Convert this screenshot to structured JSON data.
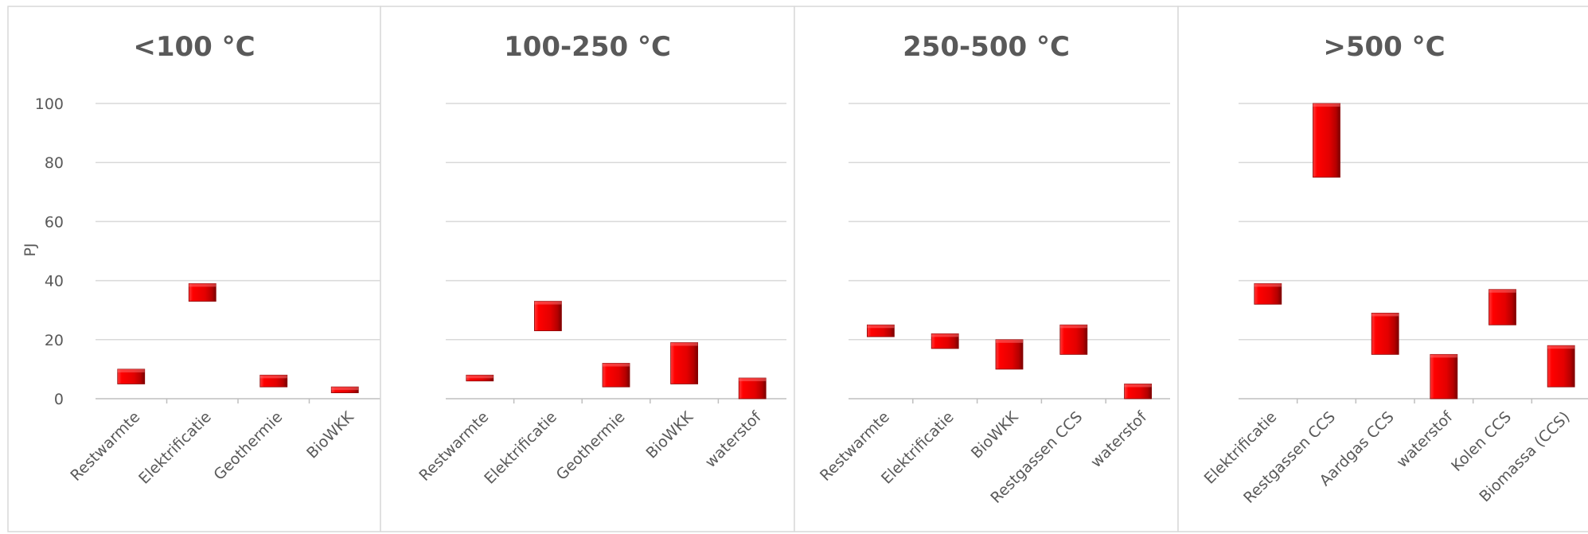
{
  "chart_data": {
    "type": "bar",
    "subtype": "floating-range",
    "ylabel": "PJ",
    "ylim": [
      0,
      100
    ],
    "yticks": [
      0,
      20,
      40,
      60,
      80,
      100
    ],
    "bar_color": "#e8000b",
    "grid": true,
    "legend": "none",
    "panels": [
      {
        "title": "<100 °C",
        "categories": [
          "Restwarmte",
          "Elektrificatie",
          "Geothermie",
          "BioWKK"
        ],
        "ranges": [
          [
            5,
            10
          ],
          [
            33,
            39
          ],
          [
            4,
            8
          ],
          [
            2,
            4
          ]
        ]
      },
      {
        "title": "100-250 °C",
        "categories": [
          "Restwarmte",
          "Elektrificatie",
          "Geothermie",
          "BioWKK",
          "waterstof"
        ],
        "ranges": [
          [
            6,
            8
          ],
          [
            23,
            33
          ],
          [
            4,
            12
          ],
          [
            5,
            19
          ],
          [
            0,
            7
          ]
        ]
      },
      {
        "title": "250-500 °C",
        "categories": [
          "Restwarmte",
          "Elektrificatie",
          "BioWKK",
          "Restgassen CCS",
          "waterstof"
        ],
        "ranges": [
          [
            21,
            25
          ],
          [
            17,
            22
          ],
          [
            10,
            20
          ],
          [
            15,
            25
          ],
          [
            0,
            5
          ]
        ]
      },
      {
        "title": ">500 °C",
        "categories": [
          "Elektrificatie",
          "Restgassen CCS",
          "Aardgas CCS",
          "waterstof",
          "Kolen CCS",
          "Biomassa (CCS)"
        ],
        "ranges": [
          [
            32,
            39
          ],
          [
            75,
            100
          ],
          [
            15,
            29
          ],
          [
            0,
            15
          ],
          [
            25,
            37
          ],
          [
            4,
            18
          ]
        ]
      }
    ]
  }
}
